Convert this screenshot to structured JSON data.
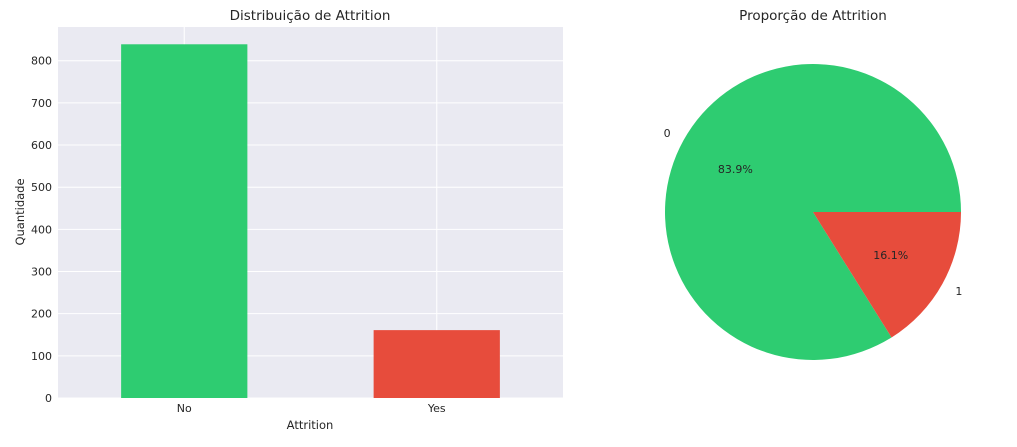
{
  "chart_data": [
    {
      "type": "bar",
      "title": "Distribuição de Attrition",
      "xlabel": "Attrition",
      "ylabel": "Quantidade",
      "categories": [
        "No",
        "Yes"
      ],
      "values": [
        839,
        161
      ],
      "colors": [
        "#2ecc71",
        "#e74c3c"
      ],
      "ylim": [
        0,
        880
      ],
      "yticks": [
        0,
        100,
        200,
        300,
        400,
        500,
        600,
        700,
        800
      ],
      "ytick_labels": [
        "0",
        "100",
        "200",
        "300",
        "400",
        "500",
        "600",
        "700",
        "800"
      ],
      "grid": true,
      "background": "#eaeaf2"
    },
    {
      "type": "pie",
      "title": "Proporção de Attrition",
      "labels": [
        "0",
        "1"
      ],
      "values": [
        83.9,
        16.1
      ],
      "pct_labels": [
        "83.9%",
        "16.1%"
      ],
      "colors": [
        "#2ecc71",
        "#e74c3c"
      ]
    }
  ]
}
